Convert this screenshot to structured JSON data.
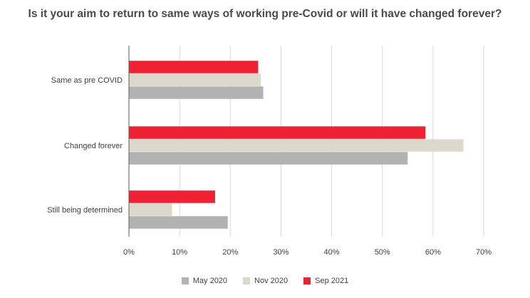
{
  "chart_data": {
    "type": "bar",
    "orientation": "horizontal",
    "title": "Is it your aim to return to same ways of working pre-Covid or will it have changed forever?",
    "categories": [
      "Same as pre COVID",
      "Changed forever",
      "Still being determined"
    ],
    "series": [
      {
        "name": "May 2020",
        "color": "#b2b2b2",
        "values": [
          26.5,
          55.0,
          19.5
        ]
      },
      {
        "name": "Nov 2020",
        "color": "#ddd8cc",
        "values": [
          26.0,
          66.0,
          8.5
        ]
      },
      {
        "name": "Sep 2021",
        "color": "#ee2233",
        "values": [
          25.5,
          58.5,
          17.0
        ]
      }
    ],
    "xlim": [
      0,
      70
    ],
    "xticks": [
      "0%",
      "10%",
      "20%",
      "30%",
      "40%",
      "50%",
      "60%",
      "70%"
    ],
    "grid": true,
    "legend_position": "bottom"
  }
}
